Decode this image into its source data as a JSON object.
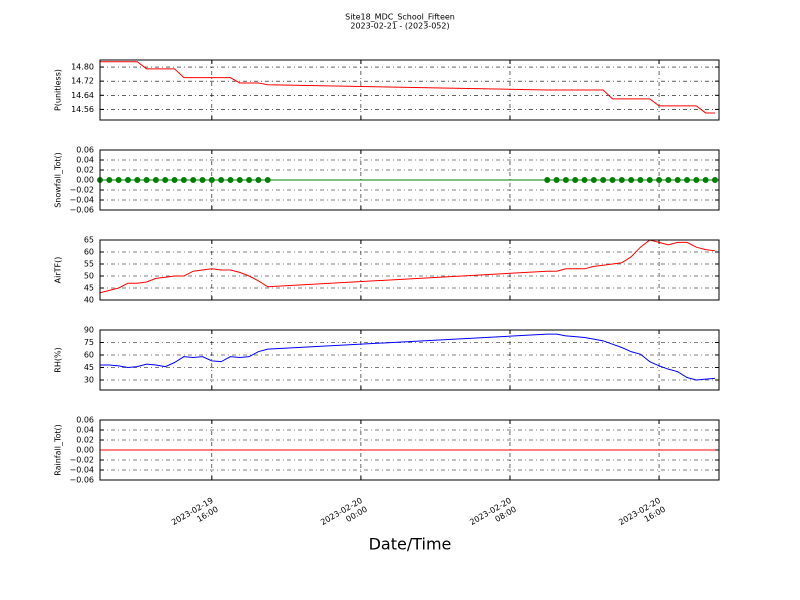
{
  "title": "Site18_MDC_School_Fifteen",
  "subtitle": "2023-02-21 - (2023-052)",
  "xlabel": "Date/Time",
  "xlim": [
    "2023-02-19 10:00",
    "2023-02-20 19:13"
  ],
  "xticks": [
    {
      "value": "2023-02-19 16:00",
      "label": "2023-02-19\n16:00"
    },
    {
      "value": "2023-02-20 00:00",
      "label": "2023-02-20\n00:00"
    },
    {
      "value": "2023-02-20 08:00",
      "label": "2023-02-20\n08:00"
    },
    {
      "value": "2023-02-20 16:00",
      "label": "2023-02-20\n16:00"
    }
  ],
  "chart_data": [
    {
      "type": "line",
      "ylabel": "P(unitless)",
      "color": "#ff0000",
      "grid": true,
      "ylim": [
        14.5,
        14.84
      ],
      "yticks": [
        14.56,
        14.64,
        14.72,
        {
          "value": 14.8,
          "label": "14.80"
        }
      ],
      "x": [
        "2023-02-19 10:00",
        "2023-02-19 10:30",
        "2023-02-19 11:00",
        "2023-02-19 11:30",
        "2023-02-19 12:00",
        "2023-02-19 12:30",
        "2023-02-19 13:00",
        "2023-02-19 13:30",
        "2023-02-19 14:00",
        "2023-02-19 14:30",
        "2023-02-19 15:00",
        "2023-02-19 15:30",
        "2023-02-19 16:00",
        "2023-02-19 16:30",
        "2023-02-19 17:00",
        "2023-02-19 17:30",
        "2023-02-19 18:00",
        "2023-02-19 18:30",
        "2023-02-19 19:00",
        "2023-02-20 10:00",
        "2023-02-20 10:30",
        "2023-02-20 11:00",
        "2023-02-20 11:30",
        "2023-02-20 12:00",
        "2023-02-20 12:30",
        "2023-02-20 13:00",
        "2023-02-20 13:30",
        "2023-02-20 14:00",
        "2023-02-20 14:30",
        "2023-02-20 15:00",
        "2023-02-20 15:30",
        "2023-02-20 16:00",
        "2023-02-20 16:30",
        "2023-02-20 17:00",
        "2023-02-20 17:30",
        "2023-02-20 18:00",
        "2023-02-20 18:30",
        "2023-02-20 19:00"
      ],
      "values": [
        14.83,
        14.83,
        14.83,
        14.83,
        14.83,
        14.79,
        14.79,
        14.79,
        14.79,
        14.74,
        14.74,
        14.74,
        14.74,
        14.74,
        14.74,
        14.71,
        14.71,
        14.71,
        14.7,
        14.67,
        14.67,
        14.67,
        14.67,
        14.67,
        14.67,
        14.67,
        14.62,
        14.62,
        14.62,
        14.62,
        14.62,
        14.58,
        14.58,
        14.58,
        14.58,
        14.58,
        14.54,
        14.54
      ]
    },
    {
      "type": "line",
      "ylabel": "Snowfall_Tot()",
      "color": "#008000",
      "marker": true,
      "grid": true,
      "ylim": [
        -0.06,
        0.06
      ],
      "yticks": [
        {
          "value": -0.06,
          "label": "−0.06"
        },
        {
          "value": -0.04,
          "label": "−0.04"
        },
        {
          "value": -0.02,
          "label": "−0.02"
        },
        {
          "value": 0,
          "label": "0.00"
        },
        {
          "value": 0.02,
          "label": "0.02"
        },
        {
          "value": 0.04,
          "label": "0.04"
        },
        {
          "value": 0.06,
          "label": "0.06"
        }
      ],
      "x": [
        "2023-02-19 10:00",
        "2023-02-19 10:30",
        "2023-02-19 11:00",
        "2023-02-19 11:30",
        "2023-02-19 12:00",
        "2023-02-19 12:30",
        "2023-02-19 13:00",
        "2023-02-19 13:30",
        "2023-02-19 14:00",
        "2023-02-19 14:30",
        "2023-02-19 15:00",
        "2023-02-19 15:30",
        "2023-02-19 16:00",
        "2023-02-19 16:30",
        "2023-02-19 17:00",
        "2023-02-19 17:30",
        "2023-02-19 18:00",
        "2023-02-19 18:30",
        "2023-02-19 19:00",
        "2023-02-20 10:00",
        "2023-02-20 10:30",
        "2023-02-20 11:00",
        "2023-02-20 11:30",
        "2023-02-20 12:00",
        "2023-02-20 12:30",
        "2023-02-20 13:00",
        "2023-02-20 13:30",
        "2023-02-20 14:00",
        "2023-02-20 14:30",
        "2023-02-20 15:00",
        "2023-02-20 15:30",
        "2023-02-20 16:00",
        "2023-02-20 16:30",
        "2023-02-20 17:00",
        "2023-02-20 17:30",
        "2023-02-20 18:00",
        "2023-02-20 18:30",
        "2023-02-20 19:00"
      ],
      "values": [
        0,
        0,
        0,
        0,
        0,
        0,
        0,
        0,
        0,
        0,
        0,
        0,
        0,
        0,
        0,
        0,
        0,
        0,
        0,
        0,
        0,
        0,
        0,
        0,
        0,
        0,
        0,
        0,
        0,
        0,
        0,
        0,
        0,
        0,
        0,
        0,
        0,
        0
      ]
    },
    {
      "type": "line",
      "ylabel": "AirTF()",
      "color": "#ff0000",
      "grid": true,
      "ylim": [
        40,
        65
      ],
      "yticks": [
        40,
        45,
        50,
        55,
        60,
        65
      ],
      "x": [
        "2023-02-19 10:00",
        "2023-02-19 10:30",
        "2023-02-19 11:00",
        "2023-02-19 11:30",
        "2023-02-19 12:00",
        "2023-02-19 12:30",
        "2023-02-19 13:00",
        "2023-02-19 13:30",
        "2023-02-19 14:00",
        "2023-02-19 14:30",
        "2023-02-19 15:00",
        "2023-02-19 15:30",
        "2023-02-19 16:00",
        "2023-02-19 16:30",
        "2023-02-19 17:00",
        "2023-02-19 17:30",
        "2023-02-19 18:00",
        "2023-02-19 18:30",
        "2023-02-19 19:00",
        "2023-02-20 10:00",
        "2023-02-20 10:30",
        "2023-02-20 11:00",
        "2023-02-20 11:30",
        "2023-02-20 12:00",
        "2023-02-20 12:30",
        "2023-02-20 13:00",
        "2023-02-20 13:30",
        "2023-02-20 14:00",
        "2023-02-20 14:30",
        "2023-02-20 15:00",
        "2023-02-20 15:30",
        "2023-02-20 16:00",
        "2023-02-20 16:30",
        "2023-02-20 17:00",
        "2023-02-20 17:30",
        "2023-02-20 18:00",
        "2023-02-20 18:30",
        "2023-02-20 19:00"
      ],
      "values": [
        43,
        44,
        45,
        47,
        47,
        47.5,
        49,
        49.5,
        50,
        50,
        52,
        52.5,
        53,
        52.5,
        52.5,
        51.5,
        50,
        48,
        45.5,
        52,
        52,
        53,
        53,
        53,
        54,
        54.5,
        55,
        55.5,
        58,
        62,
        65,
        64,
        63,
        64,
        64,
        62,
        61,
        60.5
      ]
    },
    {
      "type": "line",
      "ylabel": "RH(%)",
      "color": "#0000ff",
      "grid": true,
      "ylim": [
        18,
        90
      ],
      "yticks": [
        30,
        45,
        60,
        75,
        90
      ],
      "x": [
        "2023-02-19 10:00",
        "2023-02-19 10:30",
        "2023-02-19 11:00",
        "2023-02-19 11:30",
        "2023-02-19 12:00",
        "2023-02-19 12:30",
        "2023-02-19 13:00",
        "2023-02-19 13:30",
        "2023-02-19 14:00",
        "2023-02-19 14:30",
        "2023-02-19 15:00",
        "2023-02-19 15:30",
        "2023-02-19 16:00",
        "2023-02-19 16:30",
        "2023-02-19 17:00",
        "2023-02-19 17:30",
        "2023-02-19 18:00",
        "2023-02-19 18:30",
        "2023-02-19 19:00",
        "2023-02-20 10:00",
        "2023-02-20 10:30",
        "2023-02-20 11:00",
        "2023-02-20 11:30",
        "2023-02-20 12:00",
        "2023-02-20 12:30",
        "2023-02-20 13:00",
        "2023-02-20 13:30",
        "2023-02-20 14:00",
        "2023-02-20 14:30",
        "2023-02-20 15:00",
        "2023-02-20 15:30",
        "2023-02-20 16:00",
        "2023-02-20 16:30",
        "2023-02-20 17:00",
        "2023-02-20 17:30",
        "2023-02-20 18:00",
        "2023-02-20 18:30",
        "2023-02-20 19:00"
      ],
      "values": [
        48,
        48,
        47,
        45,
        46,
        49,
        48,
        46,
        51,
        58,
        57,
        58,
        53,
        52,
        58,
        57,
        58,
        64,
        67,
        85,
        85,
        83,
        82,
        81,
        79,
        77,
        73,
        69,
        64,
        61,
        52,
        47,
        43,
        40,
        33,
        30,
        31,
        32
      ]
    },
    {
      "type": "line",
      "ylabel": "Rainfall_Tot()",
      "color": "#ff0000",
      "grid": true,
      "ylim": [
        -0.06,
        0.06
      ],
      "yticks": [
        {
          "value": -0.06,
          "label": "−0.06"
        },
        {
          "value": -0.04,
          "label": "−0.04"
        },
        {
          "value": -0.02,
          "label": "−0.02"
        },
        {
          "value": 0,
          "label": "0.00"
        },
        {
          "value": 0.02,
          "label": "0.02"
        },
        {
          "value": 0.04,
          "label": "0.04"
        },
        {
          "value": 0.06,
          "label": "0.06"
        }
      ],
      "x": [
        "2023-02-19 10:00",
        "2023-02-19 10:30",
        "2023-02-19 11:00",
        "2023-02-19 11:30",
        "2023-02-19 12:00",
        "2023-02-19 12:30",
        "2023-02-19 13:00",
        "2023-02-19 13:30",
        "2023-02-19 14:00",
        "2023-02-19 14:30",
        "2023-02-19 15:00",
        "2023-02-19 15:30",
        "2023-02-19 16:00",
        "2023-02-19 16:30",
        "2023-02-19 17:00",
        "2023-02-19 17:30",
        "2023-02-19 18:00",
        "2023-02-19 18:30",
        "2023-02-19 19:00",
        "2023-02-20 10:00",
        "2023-02-20 10:30",
        "2023-02-20 11:00",
        "2023-02-20 11:30",
        "2023-02-20 12:00",
        "2023-02-20 12:30",
        "2023-02-20 13:00",
        "2023-02-20 13:30",
        "2023-02-20 14:00",
        "2023-02-20 14:30",
        "2023-02-20 15:00",
        "2023-02-20 15:30",
        "2023-02-20 16:00",
        "2023-02-20 16:30",
        "2023-02-20 17:00",
        "2023-02-20 17:30",
        "2023-02-20 18:00",
        "2023-02-20 18:30",
        "2023-02-20 19:00"
      ],
      "values": [
        0,
        0,
        0,
        0,
        0,
        0,
        0,
        0,
        0,
        0,
        0,
        0,
        0,
        0,
        0,
        0,
        0,
        0,
        0,
        0,
        0,
        0,
        0,
        0,
        0,
        0,
        0,
        0,
        0,
        0,
        0,
        0,
        0,
        0,
        0,
        0,
        0,
        0
      ]
    }
  ]
}
